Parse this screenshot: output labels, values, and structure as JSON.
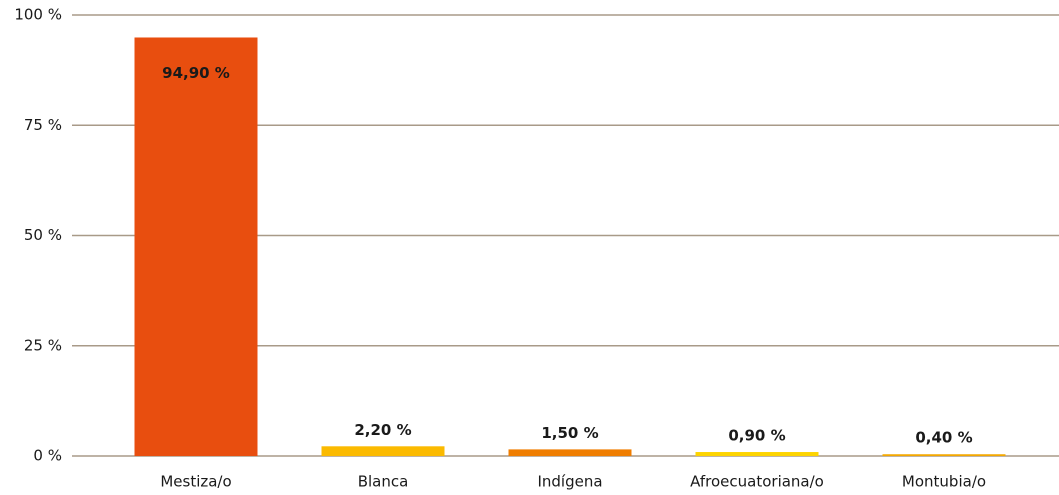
{
  "chart_data": {
    "type": "bar",
    "categories": [
      "Mestiza/o",
      "Blanca",
      "Indígena",
      "Afroecuatoriana/o",
      "Montubia/o"
    ],
    "values": [
      94.9,
      2.2,
      1.5,
      0.9,
      0.4
    ],
    "value_labels": [
      "94,90 %",
      "2,20 %",
      "1,50 %",
      "0,90 %",
      "0,40 %"
    ],
    "colors": [
      "#e84e0f",
      "#fbba00",
      "#ef7d00",
      "#fdd400",
      "#f4a800"
    ],
    "ylim": [
      0,
      100
    ],
    "yticks": [
      {
        "value": 0,
        "label": "0 %"
      },
      {
        "value": 25,
        "label": "25 %"
      },
      {
        "value": 50,
        "label": "50 %"
      },
      {
        "value": 75,
        "label": "75 %"
      },
      {
        "value": 100,
        "label": "100 %"
      }
    ],
    "grid": true
  }
}
